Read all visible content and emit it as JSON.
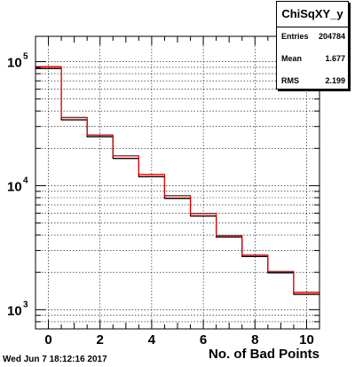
{
  "stats": {
    "title": "ChiSqXY_y",
    "entries_label": "Entries",
    "entries_value": "204784",
    "mean_label": "Mean",
    "mean_value": "1.677",
    "rms_label": "RMS",
    "rms_value": "2.199"
  },
  "timestamp": "Wed Jun  7 18:12:16 2017",
  "chart_data": {
    "type": "histogram",
    "title": "ChiSqXY_y",
    "xlabel": "No. of Bad Points",
    "ylabel": "",
    "xlim": [
      -0.5,
      10.5
    ],
    "ylim": [
      700,
      160000
    ],
    "yscale": "log",
    "grid": true,
    "bin_edges": [
      -0.5,
      0.5,
      1.5,
      2.5,
      3.5,
      4.5,
      5.5,
      6.5,
      7.5,
      8.5,
      9.5,
      10.5
    ],
    "x_ticks": [
      0,
      2,
      4,
      6,
      8,
      10
    ],
    "y_tick_labels": [
      {
        "base": "10",
        "exp": "3",
        "value": 1000
      },
      {
        "base": "10",
        "exp": "4",
        "value": 10000
      },
      {
        "base": "10",
        "exp": "5",
        "value": 100000
      }
    ],
    "series": [
      {
        "color": "#000000",
        "values": [
          88000,
          34000,
          24800,
          16600,
          11800,
          7900,
          5700,
          3850,
          2680,
          1980,
          1330
        ]
      },
      {
        "color": "#e00000",
        "values": [
          91000,
          35500,
          25600,
          17400,
          12300,
          8300,
          5950,
          3950,
          2750,
          2030,
          1380
        ]
      }
    ],
    "legend_position": "top-right"
  }
}
